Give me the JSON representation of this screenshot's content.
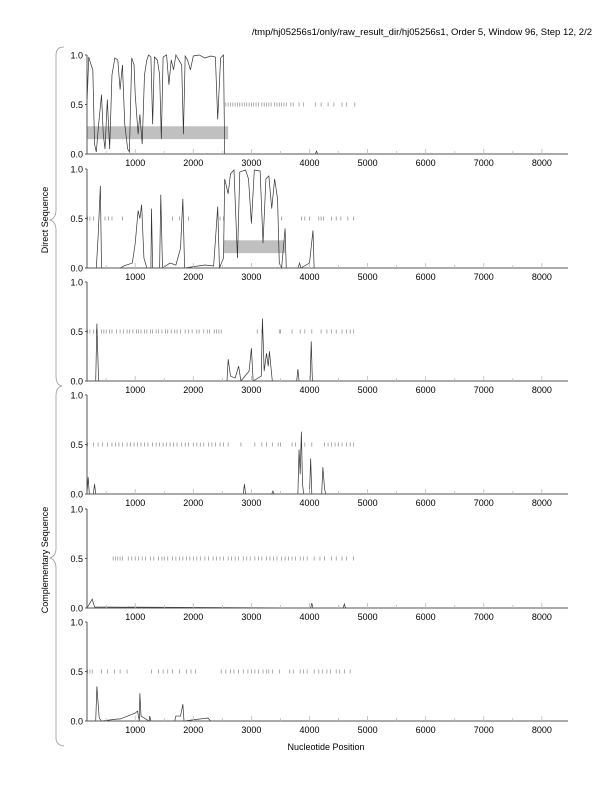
{
  "header": {
    "title": "/tmp/hj05256s1/only/raw_result_dir/hj05256s1, Order 5, Window 96, Step 12, 2/2"
  },
  "group_labels": {
    "direct": "Direct Sequence",
    "complementary": "Complementary Sequence"
  },
  "chart_data": {
    "type": "line",
    "xlabel": "Nucleotide Position",
    "xlim": [
      170,
      8450
    ],
    "ylim": [
      0,
      1
    ],
    "x_ticks": [
      1000,
      2000,
      3000,
      4000,
      5000,
      6000,
      7000,
      8000
    ],
    "x_tick_labels": [
      "1000",
      "2000",
      "3000",
      "4000",
      "5000",
      "6000",
      "7000",
      "8000"
    ],
    "y_ticks": [
      0,
      0.5,
      1
    ],
    "y_tick_labels": [
      "0.0",
      "0.5",
      "1.0"
    ],
    "colors": {
      "line": "#333333",
      "region": "#c0c0c0",
      "stop_marks": "#888888"
    },
    "panels": [
      {
        "group": "direct",
        "regions": [
          [
            170,
            2600
          ]
        ],
        "stop_marks": [
          2560,
          2600,
          2640,
          2680,
          2720,
          2760,
          2800,
          2840,
          2880,
          2920,
          2960,
          3000,
          3040,
          3080,
          3120,
          3180,
          3220,
          3260,
          3300,
          3340,
          3400,
          3440,
          3480,
          3520,
          3560,
          3600,
          3680,
          3720,
          3820,
          3900,
          4100,
          4200,
          4320,
          4420,
          4560,
          4640,
          4780
        ],
        "points": [
          [
            170,
            0.5
          ],
          [
            200,
            0.98
          ],
          [
            240,
            0.9
          ],
          [
            270,
            0.85
          ],
          [
            300,
            0.1
          ],
          [
            330,
            0.02
          ],
          [
            370,
            0.3
          ],
          [
            420,
            0.6
          ],
          [
            450,
            0.2
          ],
          [
            480,
            0.05
          ],
          [
            520,
            0.55
          ],
          [
            560,
            0.05
          ],
          [
            600,
            0.8
          ],
          [
            650,
            0.97
          ],
          [
            700,
            0.95
          ],
          [
            740,
            0.65
          ],
          [
            780,
            0.9
          ],
          [
            820,
            0.3
          ],
          [
            870,
            0.05
          ],
          [
            900,
            0.02
          ],
          [
            940,
            0.97
          ],
          [
            980,
            0.9
          ],
          [
            1000,
            0.6
          ],
          [
            1050,
            0.2
          ],
          [
            1080,
            0.4
          ],
          [
            1120,
            0.1
          ],
          [
            1160,
            0.8
          ],
          [
            1200,
            0.95
          ],
          [
            1230,
            1.0
          ],
          [
            1270,
            0.98
          ],
          [
            1300,
            0.3
          ],
          [
            1330,
            0.98
          ],
          [
            1380,
            0.95
          ],
          [
            1420,
            0.8
          ],
          [
            1450,
            0.15
          ],
          [
            1480,
            0.98
          ],
          [
            1540,
            1.0
          ],
          [
            1580,
            0.7
          ],
          [
            1620,
            0.95
          ],
          [
            1660,
            0.85
          ],
          [
            1700,
            1.0
          ],
          [
            1750,
            0.95
          ],
          [
            1800,
            0.9
          ],
          [
            1830,
            0.2
          ],
          [
            1860,
            0.99
          ],
          [
            1900,
            0.95
          ],
          [
            1950,
            0.85
          ],
          [
            2000,
            0.99
          ],
          [
            2100,
            1.0
          ],
          [
            2200,
            0.97
          ],
          [
            2300,
            0.99
          ],
          [
            2380,
            0.98
          ],
          [
            2420,
            0.35
          ],
          [
            2470,
            0.97
          ],
          [
            2520,
            1.0
          ],
          [
            2540,
            0.0
          ],
          [
            4100,
            0.0
          ],
          [
            4120,
            0.03
          ],
          [
            4140,
            0.0
          ],
          [
            4800,
            0.0
          ]
        ]
      },
      {
        "group": "direct",
        "regions": [
          [
            2520,
            3580
          ]
        ],
        "stop_marks": [
          180,
          220,
          280,
          480,
          540,
          600,
          780,
          1640,
          1760,
          1920,
          2460,
          2520,
          3520,
          3860,
          3920,
          4000,
          4160,
          4200,
          4240,
          4380,
          4460,
          4540,
          4660,
          4760
        ],
        "points": [
          [
            170,
            0
          ],
          [
            330,
            0
          ],
          [
            360,
            0.3
          ],
          [
            400,
            0.83
          ],
          [
            420,
            0
          ],
          [
            740,
            0
          ],
          [
            800,
            0.02
          ],
          [
            950,
            0.05
          ],
          [
            1000,
            0.25
          ],
          [
            1050,
            0.58
          ],
          [
            1080,
            0.5
          ],
          [
            1110,
            0.64
          ],
          [
            1150,
            0.1
          ],
          [
            1200,
            0
          ],
          [
            1270,
            0
          ],
          [
            1280,
            0.6
          ],
          [
            1300,
            0
          ],
          [
            1420,
            0
          ],
          [
            1440,
            0.74
          ],
          [
            1470,
            0
          ],
          [
            1600,
            0.05
          ],
          [
            1700,
            0.03
          ],
          [
            1780,
            0.2
          ],
          [
            1820,
            0.7
          ],
          [
            1850,
            0
          ],
          [
            2200,
            0.03
          ],
          [
            2350,
            0.02
          ],
          [
            2420,
            0.62
          ],
          [
            2450,
            0
          ],
          [
            2520,
            0.1
          ],
          [
            2540,
            0.9
          ],
          [
            2600,
            0.75
          ],
          [
            2640,
            0.95
          ],
          [
            2700,
            0.99
          ],
          [
            2760,
            0.1
          ],
          [
            2800,
            0.97
          ],
          [
            2900,
            0.99
          ],
          [
            2950,
            0.9
          ],
          [
            3000,
            0.45
          ],
          [
            3050,
            0.99
          ],
          [
            3150,
            0.98
          ],
          [
            3200,
            0.25
          ],
          [
            3250,
            0.9
          ],
          [
            3300,
            0.93
          ],
          [
            3350,
            0.6
          ],
          [
            3400,
            0.9
          ],
          [
            3450,
            0.7
          ],
          [
            3480,
            0.05
          ],
          [
            3520,
            0
          ],
          [
            3580,
            0.4
          ],
          [
            3600,
            0
          ],
          [
            3800,
            0
          ],
          [
            3830,
            0.05
          ],
          [
            3850,
            0
          ],
          [
            4000,
            0.05
          ],
          [
            4060,
            0.38
          ],
          [
            4080,
            0
          ],
          [
            4800,
            0
          ]
        ]
      },
      {
        "group": "direct",
        "regions": [],
        "stop_marks": [
          180,
          220,
          280,
          330,
          420,
          460,
          500,
          560,
          600,
          680,
          740,
          800,
          860,
          900,
          960,
          1020,
          1060,
          1100,
          1160,
          1200,
          1260,
          1300,
          1360,
          1400,
          1460,
          1520,
          1560,
          1620,
          1680,
          1720,
          1780,
          1860,
          1920,
          1980,
          2060,
          2100,
          2180,
          2240,
          2280,
          2360,
          2400,
          2440,
          2480,
          3100,
          3180,
          3480,
          3500,
          3700,
          3840,
          3920,
          4040,
          4200,
          4300,
          4380,
          4460,
          4560,
          4640,
          4700,
          4760
        ],
        "points": [
          [
            170,
            0
          ],
          [
            320,
            0
          ],
          [
            340,
            0.58
          ],
          [
            370,
            0
          ],
          [
            2580,
            0
          ],
          [
            2600,
            0.22
          ],
          [
            2640,
            0.05
          ],
          [
            2720,
            0.03
          ],
          [
            2780,
            0.15
          ],
          [
            2820,
            0
          ],
          [
            2960,
            0.1
          ],
          [
            3000,
            0.33
          ],
          [
            3030,
            0
          ],
          [
            3170,
            0.05
          ],
          [
            3190,
            0.63
          ],
          [
            3220,
            0.1
          ],
          [
            3260,
            0.28
          ],
          [
            3290,
            0.15
          ],
          [
            3310,
            0.3
          ],
          [
            3360,
            0
          ],
          [
            3780,
            0
          ],
          [
            3800,
            0.12
          ],
          [
            3820,
            0
          ],
          [
            4010,
            0
          ],
          [
            4030,
            0.4
          ],
          [
            4050,
            0
          ],
          [
            4800,
            0
          ]
        ]
      },
      {
        "group": "complementary",
        "regions": [],
        "stop_marks": [
          180,
          280,
          360,
          440,
          520,
          600,
          660,
          720,
          780,
          860,
          920,
          980,
          1040,
          1100,
          1160,
          1220,
          1300,
          1360,
          1420,
          1480,
          1540,
          1600,
          1660,
          1720,
          1800,
          1860,
          1920,
          2000,
          2060,
          2120,
          2180,
          2260,
          2320,
          2380,
          2460,
          2520,
          2600,
          2820,
          3060,
          3180,
          3260,
          3360,
          3460,
          3500,
          3700,
          3760,
          3920,
          4040,
          4260,
          4320,
          4380,
          4440,
          4500,
          4560,
          4640,
          4700,
          4760
        ],
        "points": [
          [
            170,
            0
          ],
          [
            190,
            0.17
          ],
          [
            210,
            0
          ],
          [
            280,
            0
          ],
          [
            300,
            0.1
          ],
          [
            320,
            0
          ],
          [
            2860,
            0
          ],
          [
            2880,
            0.1
          ],
          [
            2900,
            0
          ],
          [
            3350,
            0
          ],
          [
            3370,
            0.03
          ],
          [
            3390,
            0
          ],
          [
            3800,
            0
          ],
          [
            3820,
            0.45
          ],
          [
            3840,
            0.2
          ],
          [
            3860,
            0.63
          ],
          [
            3880,
            0.1
          ],
          [
            3900,
            0
          ],
          [
            4000,
            0
          ],
          [
            4020,
            0.36
          ],
          [
            4040,
            0
          ],
          [
            4210,
            0
          ],
          [
            4230,
            0.27
          ],
          [
            4260,
            0.05
          ],
          [
            4280,
            0
          ],
          [
            4800,
            0
          ]
        ]
      },
      {
        "group": "complementary",
        "regions": [],
        "stop_marks": [
          620,
          660,
          700,
          740,
          780,
          880,
          940,
          1000,
          1060,
          1120,
          1180,
          1260,
          1320,
          1400,
          1460,
          1500,
          1560,
          1640,
          1700,
          1760,
          1820,
          1880,
          1940,
          2000,
          2060,
          2120,
          2200,
          2260,
          2340,
          2400,
          2460,
          2520,
          2600,
          2660,
          2720,
          2780,
          2860,
          2920,
          2980,
          3060,
          3120,
          3180,
          3260,
          3320,
          3380,
          3440,
          3520,
          3580,
          3640,
          3700,
          3760,
          3840,
          3900,
          3960,
          4080,
          4180,
          4260,
          4380,
          4460,
          4560,
          4640,
          4760
        ],
        "points": [
          [
            170,
            0
          ],
          [
            220,
            0.05
          ],
          [
            260,
            0.09
          ],
          [
            300,
            0.01
          ],
          [
            4020,
            0
          ],
          [
            4040,
            0.05
          ],
          [
            4060,
            0
          ],
          [
            4580,
            0
          ],
          [
            4600,
            0.04
          ],
          [
            4620,
            0
          ],
          [
            4800,
            0
          ]
        ]
      },
      {
        "group": "complementary",
        "regions": [],
        "stop_marks": [
          180,
          220,
          260,
          420,
          520,
          640,
          740,
          860,
          1280,
          1400,
          1480,
          1560,
          1640,
          1760,
          1880,
          1960,
          2040,
          2480,
          2560,
          2640,
          2700,
          2780,
          2860,
          2940,
          3000,
          3060,
          3120,
          3200,
          3260,
          3300,
          3360,
          3480,
          3660,
          3720,
          3840,
          3900,
          3960,
          4080,
          4160,
          4220,
          4300,
          4360,
          4460,
          4520,
          4600,
          4700
        ],
        "points": [
          [
            170,
            0
          ],
          [
            320,
            0
          ],
          [
            340,
            0.35
          ],
          [
            380,
            0.03
          ],
          [
            420,
            0
          ],
          [
            700,
            0.02
          ],
          [
            740,
            0.02
          ],
          [
            1000,
            0.08
          ],
          [
            1040,
            0.1
          ],
          [
            1070,
            0
          ],
          [
            1080,
            0.28
          ],
          [
            1100,
            0.05
          ],
          [
            1240,
            0
          ],
          [
            1250,
            0.05
          ],
          [
            1270,
            0
          ],
          [
            1680,
            0
          ],
          [
            1700,
            0.05
          ],
          [
            1780,
            0.05
          ],
          [
            1820,
            0.17
          ],
          [
            1840,
            0
          ],
          [
            2250,
            0.03
          ],
          [
            2300,
            0
          ],
          [
            4800,
            0
          ]
        ]
      }
    ]
  }
}
